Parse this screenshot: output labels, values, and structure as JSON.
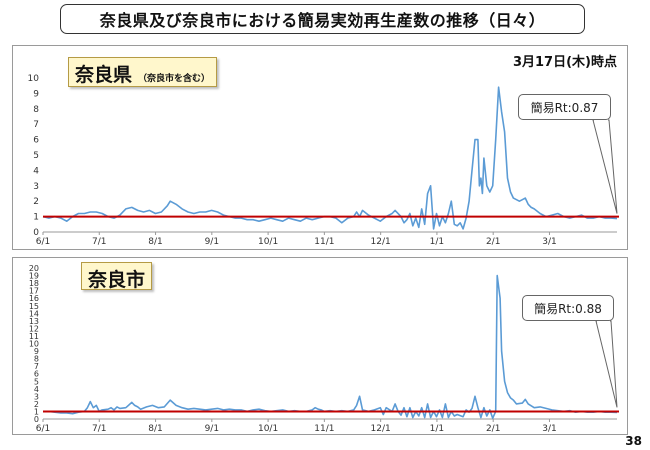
{
  "title": "奈良県及び奈良市における簡易実効再生産数の推移（日々）",
  "date_label": "3月17日(木)時点",
  "page_number": "38",
  "colors": {
    "line": "#5b9bd5",
    "reference_line": "#c00000",
    "label_bg": "#fff7cc"
  },
  "chart_data": [
    {
      "type": "line",
      "label_main": "奈良県",
      "label_sub": "（奈良市を含む）",
      "callout": "簡易Rt:0.87",
      "x_ticks": [
        "6/1",
        "7/1",
        "8/1",
        "9/1",
        "10/1",
        "11/1",
        "12/1",
        "1/1",
        "2/1",
        "3/1"
      ],
      "y_ticks": [
        "0",
        "1",
        "2",
        "3",
        "4",
        "5",
        "6",
        "7",
        "8",
        "9",
        "10"
      ],
      "ylim": [
        0,
        10
      ],
      "reference_value": 1,
      "series": [
        {
          "points": [
            [
              0,
              1.0
            ],
            [
              4,
              0.9
            ],
            [
              8,
              1.0
            ],
            [
              12,
              0.9
            ],
            [
              16,
              0.7
            ],
            [
              20,
              1.0
            ],
            [
              24,
              1.2
            ],
            [
              28,
              1.2
            ],
            [
              32,
              1.3
            ],
            [
              36,
              1.3
            ],
            [
              40,
              1.2
            ],
            [
              44,
              1.0
            ],
            [
              48,
              0.9
            ],
            [
              52,
              1.1
            ],
            [
              56,
              1.5
            ],
            [
              60,
              1.6
            ],
            [
              64,
              1.4
            ],
            [
              68,
              1.3
            ],
            [
              72,
              1.4
            ],
            [
              76,
              1.2
            ],
            [
              80,
              1.3
            ],
            [
              84,
              1.7
            ],
            [
              86,
              2.0
            ],
            [
              90,
              1.8
            ],
            [
              94,
              1.5
            ],
            [
              98,
              1.3
            ],
            [
              102,
              1.2
            ],
            [
              106,
              1.3
            ],
            [
              110,
              1.3
            ],
            [
              114,
              1.4
            ],
            [
              118,
              1.3
            ],
            [
              122,
              1.1
            ],
            [
              126,
              1.0
            ],
            [
              130,
              0.9
            ],
            [
              134,
              0.9
            ],
            [
              138,
              0.8
            ],
            [
              142,
              0.8
            ],
            [
              146,
              0.7
            ],
            [
              150,
              0.8
            ],
            [
              154,
              0.9
            ],
            [
              158,
              0.8
            ],
            [
              162,
              0.7
            ],
            [
              166,
              0.9
            ],
            [
              170,
              0.8
            ],
            [
              174,
              0.7
            ],
            [
              178,
              0.9
            ],
            [
              182,
              0.8
            ],
            [
              186,
              0.9
            ],
            [
              190,
              1.0
            ],
            [
              194,
              1.0
            ],
            [
              198,
              0.9
            ],
            [
              202,
              0.6
            ],
            [
              206,
              0.9
            ],
            [
              210,
              1.0
            ],
            [
              212,
              1.3
            ],
            [
              214,
              1.0
            ],
            [
              216,
              1.4
            ],
            [
              220,
              1.1
            ],
            [
              224,
              0.9
            ],
            [
              228,
              0.7
            ],
            [
              232,
              1.0
            ],
            [
              236,
              1.2
            ],
            [
              238,
              1.4
            ],
            [
              242,
              1.0
            ],
            [
              244,
              0.6
            ],
            [
              246,
              0.8
            ],
            [
              248,
              1.2
            ],
            [
              250,
              0.4
            ],
            [
              252,
              0.9
            ],
            [
              254,
              0.3
            ],
            [
              256,
              1.5
            ],
            [
              258,
              0.5
            ],
            [
              260,
              2.5
            ],
            [
              262,
              3.0
            ],
            [
              264,
              0.2
            ],
            [
              266,
              1.2
            ],
            [
              268,
              0.4
            ],
            [
              270,
              1.0
            ],
            [
              272,
              0.6
            ],
            [
              274,
              1.2
            ],
            [
              276,
              2.0
            ],
            [
              278,
              0.5
            ],
            [
              280,
              0.4
            ],
            [
              282,
              0.6
            ],
            [
              284,
              0.2
            ],
            [
              286,
              0.9
            ],
            [
              288,
              2.0
            ],
            [
              290,
              4.0
            ],
            [
              292,
              6.0
            ],
            [
              294,
              6.0
            ],
            [
              295,
              3.0
            ],
            [
              296,
              3.5
            ],
            [
              297,
              2.5
            ],
            [
              298,
              4.8
            ],
            [
              300,
              3.0
            ],
            [
              302,
              2.6
            ],
            [
              304,
              3.0
            ],
            [
              306,
              6.0
            ],
            [
              308,
              9.4
            ],
            [
              310,
              7.8
            ],
            [
              312,
              6.5
            ],
            [
              314,
              3.5
            ],
            [
              316,
              2.6
            ],
            [
              318,
              2.2
            ],
            [
              322,
              2.0
            ],
            [
              324,
              2.1
            ],
            [
              326,
              2.2
            ],
            [
              328,
              1.8
            ],
            [
              330,
              1.6
            ],
            [
              332,
              1.5
            ],
            [
              336,
              1.2
            ],
            [
              340,
              1.0
            ],
            [
              344,
              1.1
            ],
            [
              348,
              1.2
            ],
            [
              352,
              1.0
            ],
            [
              356,
              0.9
            ],
            [
              360,
              1.0
            ],
            [
              364,
              1.1
            ],
            [
              368,
              0.9
            ],
            [
              372,
              0.9
            ],
            [
              376,
              1.0
            ],
            [
              380,
              0.9
            ],
            [
              384,
              0.9
            ],
            [
              388,
              0.87
            ]
          ]
        }
      ]
    },
    {
      "type": "line",
      "label_main": "奈良市",
      "callout": "簡易Rt:0.88",
      "x_ticks": [
        "6/1",
        "7/1",
        "8/1",
        "9/1",
        "10/1",
        "11/1",
        "12/1",
        "1/1",
        "2/1",
        "3/1"
      ],
      "y_ticks": [
        "0",
        "1",
        "2",
        "3",
        "4",
        "5",
        "6",
        "7",
        "8",
        "9",
        "10",
        "11",
        "12",
        "13",
        "14",
        "15",
        "16",
        "17",
        "18",
        "19",
        "20"
      ],
      "ylim": [
        0,
        20
      ],
      "reference_value": 1,
      "series": [
        {
          "points": [
            [
              0,
              1.0
            ],
            [
              4,
              1.0
            ],
            [
              8,
              0.9
            ],
            [
              12,
              0.8
            ],
            [
              16,
              0.8
            ],
            [
              20,
              0.7
            ],
            [
              24,
              0.9
            ],
            [
              28,
              1.0
            ],
            [
              30,
              1.5
            ],
            [
              32,
              2.3
            ],
            [
              34,
              1.5
            ],
            [
              36,
              1.8
            ],
            [
              38,
              1.0
            ],
            [
              40,
              1.2
            ],
            [
              44,
              1.3
            ],
            [
              46,
              1.5
            ],
            [
              48,
              1.2
            ],
            [
              50,
              1.6
            ],
            [
              52,
              1.4
            ],
            [
              56,
              1.5
            ],
            [
              60,
              2.2
            ],
            [
              62,
              1.8
            ],
            [
              64,
              1.6
            ],
            [
              66,
              1.3
            ],
            [
              70,
              1.6
            ],
            [
              74,
              1.8
            ],
            [
              78,
              1.5
            ],
            [
              82,
              1.6
            ],
            [
              86,
              2.5
            ],
            [
              90,
              1.8
            ],
            [
              94,
              1.5
            ],
            [
              98,
              1.3
            ],
            [
              102,
              1.4
            ],
            [
              106,
              1.3
            ],
            [
              110,
              1.2
            ],
            [
              114,
              1.3
            ],
            [
              118,
              1.4
            ],
            [
              122,
              1.2
            ],
            [
              126,
              1.3
            ],
            [
              130,
              1.2
            ],
            [
              134,
              1.2
            ],
            [
              138,
              1.0
            ],
            [
              142,
              1.2
            ],
            [
              146,
              1.3
            ],
            [
              150,
              1.1
            ],
            [
              154,
              1.0
            ],
            [
              158,
              1.1
            ],
            [
              162,
              1.2
            ],
            [
              166,
              1.0
            ],
            [
              170,
              1.1
            ],
            [
              174,
              1.0
            ],
            [
              178,
              1.0
            ],
            [
              182,
              1.2
            ],
            [
              184,
              1.5
            ],
            [
              186,
              1.3
            ],
            [
              188,
              1.2
            ],
            [
              190,
              1.0
            ],
            [
              194,
              1.1
            ],
            [
              198,
              1.0
            ],
            [
              202,
              1.1
            ],
            [
              206,
              1.0
            ],
            [
              210,
              1.2
            ],
            [
              212,
              1.8
            ],
            [
              214,
              3.0
            ],
            [
              216,
              1.2
            ],
            [
              220,
              1.0
            ],
            [
              224,
              1.2
            ],
            [
              228,
              1.5
            ],
            [
              230,
              0.6
            ],
            [
              232,
              1.5
            ],
            [
              236,
              1.0
            ],
            [
              238,
              2.0
            ],
            [
              240,
              1.0
            ],
            [
              242,
              0.5
            ],
            [
              244,
              1.5
            ],
            [
              246,
              0.3
            ],
            [
              248,
              1.5
            ],
            [
              250,
              0.2
            ],
            [
              252,
              1.0
            ],
            [
              254,
              0.4
            ],
            [
              256,
              1.5
            ],
            [
              258,
              0.2
            ],
            [
              260,
              2.0
            ],
            [
              262,
              0.2
            ],
            [
              264,
              1.0
            ],
            [
              266,
              0.3
            ],
            [
              268,
              1.2
            ],
            [
              270,
              0.2
            ],
            [
              272,
              2.0
            ],
            [
              274,
              0.2
            ],
            [
              276,
              1.0
            ],
            [
              278,
              0.4
            ],
            [
              280,
              0.6
            ],
            [
              284,
              0.3
            ],
            [
              286,
              1.2
            ],
            [
              288,
              0.9
            ],
            [
              290,
              1.4
            ],
            [
              292,
              3.0
            ],
            [
              294,
              1.5
            ],
            [
              296,
              0.2
            ],
            [
              298,
              1.5
            ],
            [
              300,
              0.4
            ],
            [
              302,
              1.2
            ],
            [
              304,
              0.1
            ],
            [
              306,
              1.0
            ],
            [
              307,
              19.0
            ],
            [
              309,
              16.0
            ],
            [
              310,
              9.0
            ],
            [
              312,
              5.0
            ],
            [
              314,
              3.5
            ],
            [
              316,
              2.8
            ],
            [
              318,
              2.5
            ],
            [
              320,
              2.0
            ],
            [
              324,
              2.1
            ],
            [
              326,
              2.6
            ],
            [
              328,
              2.0
            ],
            [
              332,
              1.5
            ],
            [
              336,
              1.6
            ],
            [
              340,
              1.4
            ],
            [
              344,
              1.2
            ],
            [
              348,
              1.1
            ],
            [
              352,
              1.0
            ],
            [
              356,
              1.1
            ],
            [
              360,
              0.9
            ],
            [
              364,
              1.0
            ],
            [
              368,
              0.9
            ],
            [
              372,
              0.9
            ],
            [
              376,
              1.0
            ],
            [
              380,
              0.9
            ],
            [
              384,
              0.9
            ],
            [
              388,
              0.88
            ]
          ]
        }
      ]
    }
  ]
}
